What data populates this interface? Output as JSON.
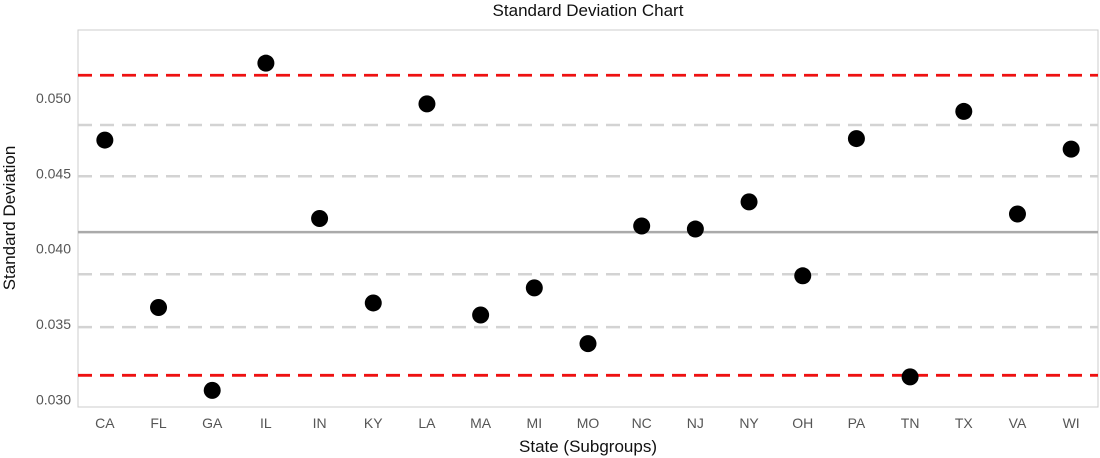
{
  "chart_data": {
    "type": "scatter",
    "title": "Standard Deviation Chart",
    "xlabel": "State (Subgroups)",
    "ylabel": "Standard Deviation",
    "categories": [
      "CA",
      "FL",
      "GA",
      "IL",
      "IN",
      "KY",
      "LA",
      "MA",
      "MI",
      "MO",
      "NC",
      "NJ",
      "NY",
      "OH",
      "PA",
      "TN",
      "TX",
      "VA",
      "WI"
    ],
    "values": [
      0.0472,
      0.0361,
      0.0306,
      0.0523,
      0.042,
      0.0364,
      0.0496,
      0.0356,
      0.0374,
      0.0337,
      0.0415,
      0.0413,
      0.0431,
      0.0382,
      0.0473,
      0.0315,
      0.0491,
      0.0423,
      0.0466
    ],
    "ylim": [
      0.0295,
      0.0545
    ],
    "yticks": [
      "0.030",
      "0.035",
      "0.040",
      "0.045",
      "0.050"
    ],
    "reference_lines": {
      "center": 0.0411,
      "limits": [
        0.0316,
        0.0515
      ],
      "sigma_bands": [
        0.0348,
        0.0383,
        0.0448,
        0.0482
      ]
    },
    "colors": {
      "points": "#000000",
      "center_line": "#aaaaaa",
      "limit_lines": "#ee1111",
      "band_lines": "#d3d3d3",
      "panel_border": "#cccccc"
    },
    "grid": false,
    "legend": "none"
  }
}
